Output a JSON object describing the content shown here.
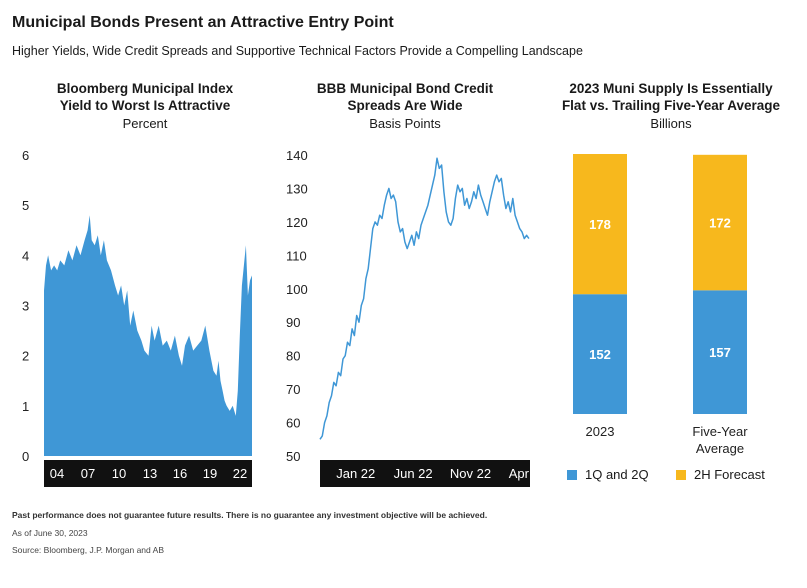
{
  "header": {
    "title": "Municipal Bonds Present an Attractive Entry Point",
    "subtitle": "Higher Yields, Wide Credit Spreads and Supportive Technical Factors Provide a Compelling Landscape"
  },
  "footer": {
    "disclaimer": "Past performance does not guarantee future results. There is no guarantee any investment objective will be achieved.",
    "as_of": "As of June 30, 2023",
    "source": "Source: Bloomberg, J.P. Morgan and AB"
  },
  "chart_data": [
    {
      "type": "area",
      "title_line1": "Bloomberg Municipal Index",
      "title_line2": "Yield to Worst Is Attractive",
      "unit": "Percent",
      "color": "#3f97d6",
      "ylim": [
        0,
        6
      ],
      "yticks": [
        "0",
        "1",
        "2",
        "3",
        "4",
        "5",
        "6"
      ],
      "xticks": [
        "04",
        "07",
        "10",
        "13",
        "16",
        "19",
        "22"
      ],
      "xlim": [
        2003.0,
        2023.5
      ],
      "x": [
        2003.0,
        2003.2,
        2003.4,
        2003.7,
        2004.0,
        2004.3,
        2004.6,
        2005.0,
        2005.4,
        2005.8,
        2006.2,
        2006.6,
        2007.0,
        2007.3,
        2007.5,
        2007.7,
        2008.0,
        2008.3,
        2008.6,
        2008.9,
        2009.2,
        2009.6,
        2010.0,
        2010.3,
        2010.6,
        2010.9,
        2011.2,
        2011.5,
        2011.8,
        2012.2,
        2012.6,
        2012.9,
        2013.3,
        2013.6,
        2013.9,
        2014.3,
        2014.7,
        2015.1,
        2015.5,
        2015.9,
        2016.3,
        2016.6,
        2016.9,
        2017.3,
        2017.7,
        2018.1,
        2018.5,
        2018.9,
        2019.3,
        2019.7,
        2020.0,
        2020.2,
        2020.4,
        2020.6,
        2020.8,
        2021.0,
        2021.3,
        2021.6,
        2021.9,
        2022.1,
        2022.3,
        2022.5,
        2022.7,
        2022.9,
        2023.1,
        2023.3,
        2023.5
      ],
      "y": [
        3.3,
        3.8,
        4.0,
        3.7,
        3.8,
        3.7,
        3.9,
        3.8,
        4.1,
        3.9,
        4.2,
        4.0,
        4.3,
        4.5,
        4.8,
        4.3,
        4.2,
        4.4,
        4.0,
        4.3,
        3.9,
        3.7,
        3.4,
        3.2,
        3.4,
        3.0,
        3.3,
        2.6,
        2.9,
        2.5,
        2.3,
        2.1,
        2.0,
        2.6,
        2.3,
        2.6,
        2.2,
        2.3,
        2.1,
        2.4,
        2.0,
        1.8,
        2.2,
        2.4,
        2.1,
        2.2,
        2.3,
        2.6,
        2.1,
        1.7,
        1.6,
        1.9,
        1.5,
        1.3,
        1.1,
        1.0,
        0.9,
        1.0,
        0.8,
        1.3,
        2.4,
        3.4,
        3.8,
        4.2,
        3.2,
        3.5,
        3.6
      ]
    },
    {
      "type": "line",
      "title_line1": "BBB Municipal Bond Credit",
      "title_line2": "Spreads Are Wide",
      "unit": "Basis Points",
      "color": "#3f97d6",
      "ylim": [
        50,
        140
      ],
      "yticks": [
        "50",
        "60",
        "70",
        "80",
        "90",
        "100",
        "110",
        "120",
        "130",
        "140"
      ],
      "xticks": [
        "Jan 22",
        "Jun 22",
        "Nov 22",
        "Apr 23"
      ],
      "xtick_values": [
        1.2,
        6.2,
        11.2,
        16.2
      ],
      "xlim": [
        0,
        18.3
      ],
      "x": [
        0.0,
        0.2,
        0.4,
        0.6,
        0.8,
        1.0,
        1.2,
        1.4,
        1.6,
        1.8,
        2.0,
        2.2,
        2.4,
        2.6,
        2.8,
        3.0,
        3.2,
        3.4,
        3.6,
        3.8,
        4.0,
        4.2,
        4.4,
        4.6,
        4.8,
        5.0,
        5.2,
        5.4,
        5.6,
        5.8,
        6.0,
        6.2,
        6.4,
        6.6,
        6.8,
        7.0,
        7.2,
        7.4,
        7.6,
        7.8,
        8.0,
        8.2,
        8.4,
        8.6,
        8.8,
        9.0,
        9.2,
        9.4,
        9.6,
        9.8,
        10.0,
        10.2,
        10.4,
        10.6,
        10.8,
        11.0,
        11.2,
        11.4,
        11.6,
        11.8,
        12.0,
        12.2,
        12.4,
        12.6,
        12.8,
        13.0,
        13.2,
        13.4,
        13.6,
        13.8,
        14.0,
        14.2,
        14.4,
        14.6,
        14.8,
        15.0,
        15.2,
        15.4,
        15.6,
        15.8,
        16.0,
        16.2,
        16.4,
        16.6,
        16.8,
        17.0,
        17.2,
        17.4,
        17.6,
        17.8,
        18.0,
        18.2
      ],
      "y": [
        55,
        56,
        60,
        62,
        66,
        68,
        72,
        71,
        75,
        74,
        79,
        80,
        84,
        83,
        88,
        86,
        92,
        90,
        95,
        97,
        103,
        106,
        112,
        118,
        120,
        119,
        122,
        121,
        125,
        128,
        130,
        127,
        128,
        126,
        120,
        117,
        118,
        114,
        112,
        114,
        116,
        113,
        117,
        115,
        119,
        121,
        123,
        125,
        128,
        131,
        134,
        139,
        136,
        137,
        129,
        123,
        120,
        119,
        121,
        127,
        131,
        129,
        130,
        125,
        127,
        124,
        126,
        129,
        127,
        131,
        128,
        126,
        124,
        122,
        126,
        129,
        132,
        134,
        132,
        133,
        128,
        124,
        126,
        123,
        127,
        122,
        120,
        118,
        117,
        115,
        116,
        115
      ]
    },
    {
      "type": "bar",
      "stacked": true,
      "title_line1": "2023 Muni Supply Is Essentially",
      "title_line2": "Flat vs. Trailing Five-Year Average",
      "unit": "Billions",
      "categories": [
        {
          "line1": "2023",
          "line2": ""
        },
        {
          "line1": "Five-Year",
          "line2": "Average"
        }
      ],
      "series": [
        {
          "name": "1Q and 2Q",
          "color": "#3f97d6",
          "values": [
            152,
            157
          ],
          "labels": [
            "152",
            "157"
          ]
        },
        {
          "name": "2H Forecast",
          "color": "#f7b81d",
          "values": [
            178,
            172
          ],
          "labels": [
            "178",
            "172"
          ]
        }
      ]
    }
  ]
}
